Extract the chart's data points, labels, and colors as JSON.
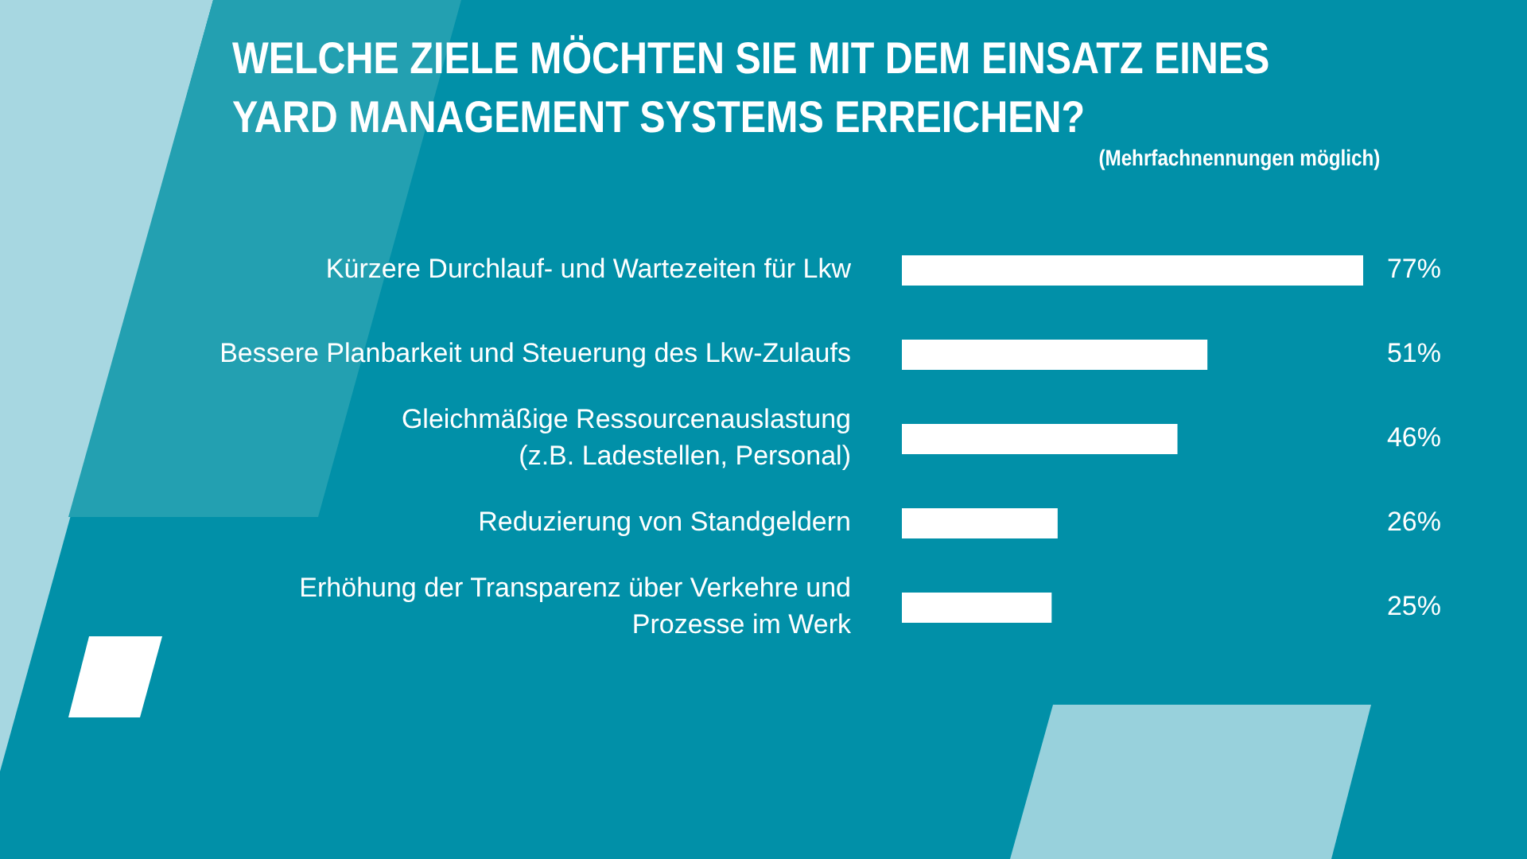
{
  "chart_data": {
    "type": "bar",
    "orientation": "horizontal",
    "title": "WELCHE ZIELE MÖCHTEN SIE MIT DEM EINSATZ EINES YARD MANAGEMENT SYSTEMS ERREICHEN?",
    "subtitle": "(Mehrfachnennungen möglich)",
    "categories": [
      "Kürzere Durchlauf- und Wartezeiten für Lkw",
      "Bessere Planbarkeit und Steuerung des Lkw-Zulaufs",
      "Gleichmäßige Ressourcenauslastung\n(z.B. Ladestellen, Personal)",
      "Reduzierung von Standgeldern",
      "Erhöhung der Transparenz über Verkehre und\nProzesse im Werk"
    ],
    "values": [
      77,
      51,
      46,
      26,
      25
    ],
    "color": "#ffffff",
    "value_labels": [
      "77%",
      "51%",
      "46%",
      "26%",
      "25%"
    ],
    "tick_labels": "y"
  }
}
